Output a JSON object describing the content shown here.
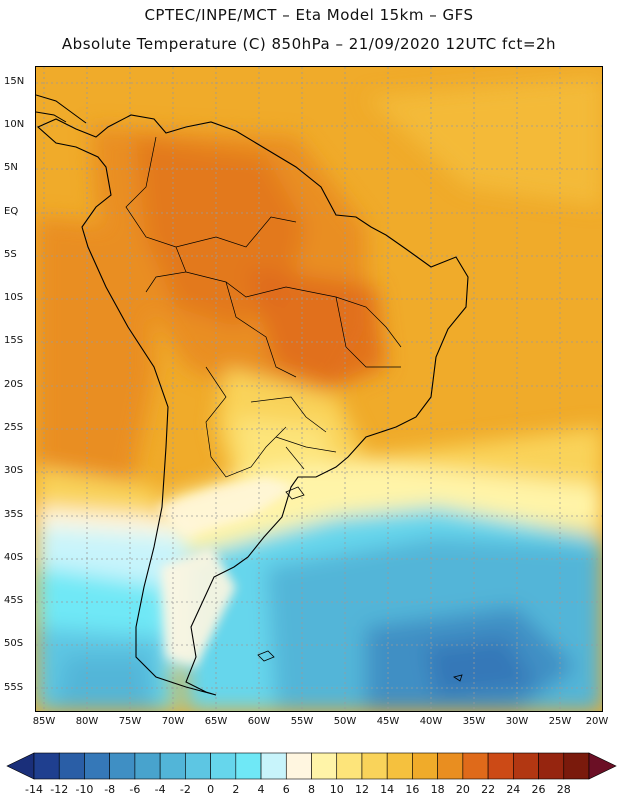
{
  "header": {
    "title_line1": "CPTEC/INPE/MCT –  Eta Model 15km – GFS",
    "title_line2": "Absolute Temperature (C) 850hPa – 21/09/2020 12UTC fct=2h"
  },
  "axes": {
    "lat_labels": [
      "15N",
      "10N",
      "5N",
      "EQ",
      "5S",
      "10S",
      "15S",
      "20S",
      "25S",
      "30S",
      "35S",
      "40S",
      "45S",
      "50S",
      "55S"
    ],
    "lon_labels": [
      "85W",
      "80W",
      "75W",
      "70W",
      "65W",
      "60W",
      "55W",
      "50W",
      "45W",
      "40W",
      "35W",
      "30W",
      "25W",
      "20W"
    ]
  },
  "colorbar": {
    "labels": [
      "-14",
      "-12",
      "-10",
      "-8",
      "-6",
      "-4",
      "-2",
      "0",
      "2",
      "4",
      "6",
      "8",
      "10",
      "12",
      "14",
      "16",
      "18",
      "20",
      "22",
      "24",
      "26",
      "28"
    ],
    "colors": [
      "#1f3f8f",
      "#2a5ea6",
      "#3578b8",
      "#3f8fc4",
      "#48a3cd",
      "#52b5d8",
      "#5dc6e3",
      "#66d6ec",
      "#6fe8f6",
      "#c8f4fb",
      "#fff6e0",
      "#fff4a8",
      "#fde47a",
      "#f9d35a",
      "#f5c13e",
      "#f0ab2a",
      "#e98e20",
      "#df6a1a",
      "#cc4a16",
      "#b23712",
      "#96250f",
      "#7a1a0c"
    ],
    "under_color": "#1a2f7a",
    "over_color": "#6b0f25"
  }
}
